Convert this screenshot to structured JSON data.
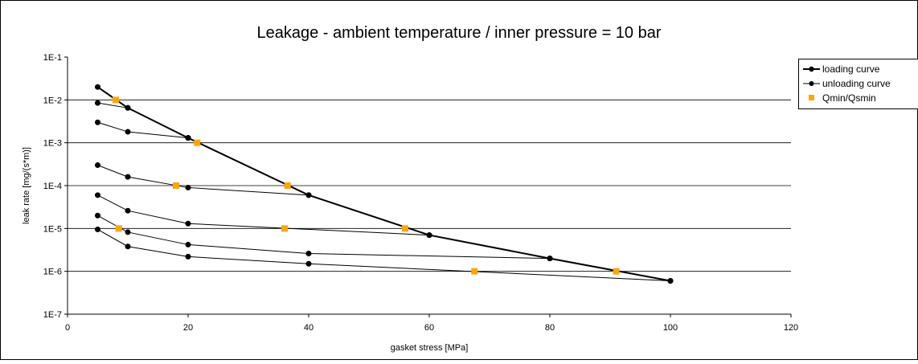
{
  "chart_data": {
    "type": "line",
    "title": "Leakage - ambient temperature / inner pressure = 10 bar",
    "xlabel": "gasket stress [MPa]",
    "ylabel": "leak rate [mg/(s*m)]",
    "x_scale": "linear",
    "y_scale": "log",
    "xlim": [
      0,
      120
    ],
    "ylim": [
      1e-07,
      0.1
    ],
    "x_ticks": [
      0,
      20,
      40,
      60,
      80,
      100,
      120
    ],
    "x_tick_labels": [
      "0",
      "20",
      "40",
      "60",
      "80",
      "100",
      "120"
    ],
    "y_ticks": [
      0.1,
      0.01,
      0.001,
      0.0001,
      1e-05,
      1e-06,
      1e-07
    ],
    "y_tick_labels": [
      "1E-1",
      "1E-2",
      "1E-3",
      "1E-4",
      "1E-5",
      "1E-6",
      "1E-7"
    ],
    "grid": "horizontal",
    "legend_position": "right",
    "legend": [
      {
        "label": "loading curve",
        "marker": "circle",
        "color": "#000000"
      },
      {
        "label": "unloading curve",
        "marker": "circle",
        "color": "#000000"
      },
      {
        "label": "Qmin/Qsmin",
        "marker": "square",
        "color": "#ffa500"
      }
    ],
    "series": [
      {
        "name": "loading curve",
        "role": "loading",
        "x": [
          5,
          10,
          20,
          40,
          60,
          80,
          100
        ],
        "y": [
          0.02,
          0.0065,
          0.0013,
          6e-05,
          7e-06,
          2e-06,
          6e-07
        ]
      },
      {
        "name": "unloading curve",
        "role": "unloading",
        "x": [
          5,
          10,
          20
        ],
        "y": [
          0.0085,
          0.0065,
          0.0013
        ]
      },
      {
        "name": "unloading curve",
        "role": "unloading",
        "x": [
          5,
          10,
          20
        ],
        "y": [
          0.003,
          0.0018,
          0.0013
        ]
      },
      {
        "name": "unloading curve",
        "role": "unloading",
        "x": [
          5,
          10,
          20,
          40
        ],
        "y": [
          0.0003,
          0.00016,
          9e-05,
          6e-05
        ]
      },
      {
        "name": "unloading curve",
        "role": "unloading",
        "x": [
          5,
          10,
          20,
          60
        ],
        "y": [
          6e-05,
          2.6e-05,
          1.3e-05,
          7e-06
        ]
      },
      {
        "name": "unloading curve",
        "role": "unloading",
        "x": [
          5,
          10,
          20,
          40,
          80
        ],
        "y": [
          2e-05,
          8.2e-06,
          4.2e-06,
          2.6e-06,
          2e-06
        ]
      },
      {
        "name": "unloading curve",
        "role": "unloading",
        "x": [
          5,
          10,
          20,
          40,
          100
        ],
        "y": [
          9.5e-06,
          3.8e-06,
          2.2e-06,
          1.5e-06,
          6e-07
        ]
      },
      {
        "name": "Qmin/Qsmin",
        "role": "markers",
        "x": [
          8,
          21.5,
          36.5,
          56,
          91,
          18,
          36,
          67.5,
          8.5
        ],
        "y": [
          0.01,
          0.001,
          0.0001,
          1e-05,
          1e-06,
          0.0001,
          1e-05,
          1e-06,
          1e-05
        ]
      }
    ],
    "colors": {
      "line": "#000000",
      "marker": "#000000",
      "qmin": "#ffa500",
      "grid": "#000000"
    }
  }
}
